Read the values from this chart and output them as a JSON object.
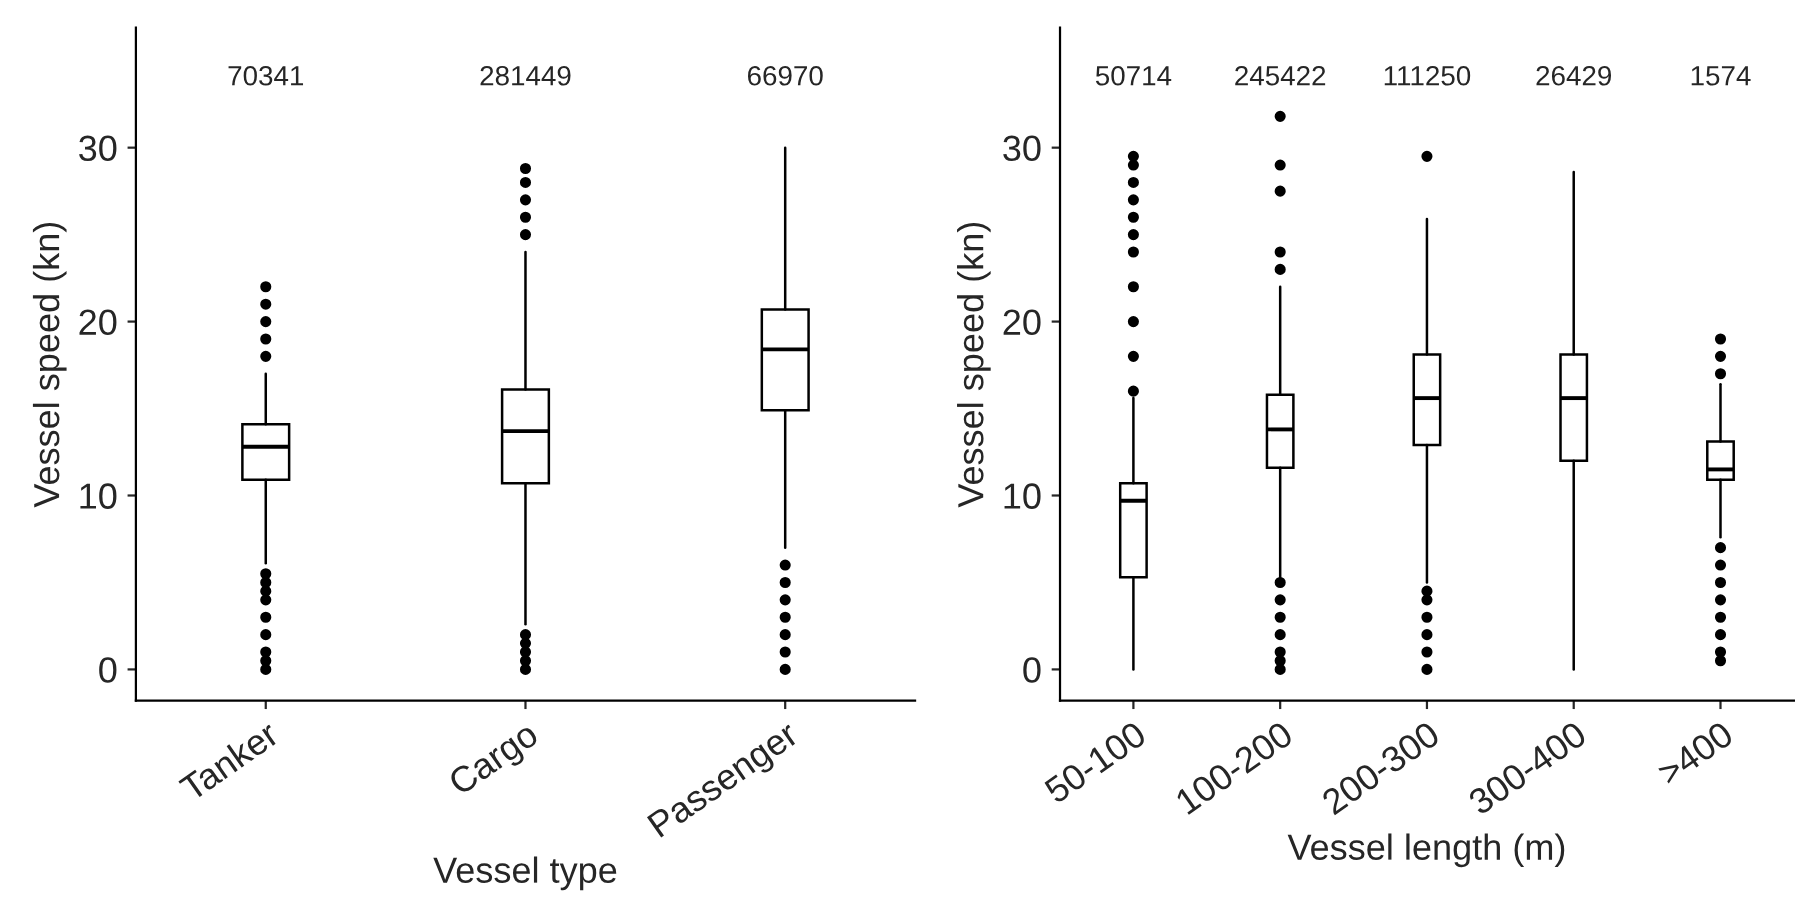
{
  "chart_data": [
    {
      "type": "box",
      "xlabel": "Vessel type",
      "ylabel": "Vessel speed (kn)",
      "categories": [
        "Tanker",
        "Cargo",
        "Passenger"
      ],
      "ylim": [
        -1.8,
        36.9
      ],
      "yticks": [
        0,
        10,
        20,
        30
      ],
      "grid": false,
      "boxes": [
        {
          "low": 6.1,
          "q1": 10.9,
          "median": 12.8,
          "q3": 14.1,
          "high": 17,
          "outliers": [
            0,
            0.5,
            1,
            2,
            3,
            4,
            4.5,
            5,
            5.5,
            18,
            19,
            20,
            21,
            22
          ]
        },
        {
          "low": 2.6,
          "q1": 10.7,
          "median": 13.7,
          "q3": 16.1,
          "high": 24,
          "outliers": [
            0,
            0.5,
            1,
            1.5,
            2,
            25,
            26,
            27,
            28,
            28.8
          ]
        },
        {
          "low": 7,
          "q1": 14.9,
          "median": 18.4,
          "q3": 20.7,
          "high": 30,
          "outliers": [
            0,
            1,
            2,
            3,
            4,
            5,
            6
          ]
        }
      ],
      "annotations": [
        "70341",
        "281449",
        "66970"
      ]
    },
    {
      "type": "box",
      "xlabel": "Vessel length (m)",
      "ylabel": "Vessel speed (kn)",
      "categories": [
        "50-100",
        "100-200",
        "200-300",
        "300-400",
        ">400"
      ],
      "ylim": [
        -1.8,
        36.9
      ],
      "yticks": [
        0,
        10,
        20,
        30
      ],
      "grid": false,
      "boxes": [
        {
          "low": 0,
          "q1": 5.3,
          "median": 9.7,
          "q3": 10.7,
          "high": 15.6,
          "outliers": [
            16,
            18,
            20,
            22,
            24,
            25,
            26,
            27,
            28,
            29,
            29.5
          ]
        },
        {
          "low": 5.3,
          "q1": 11.6,
          "median": 13.8,
          "q3": 15.8,
          "high": 22,
          "outliers": [
            0,
            0.5,
            1,
            2,
            3,
            4,
            5,
            23,
            24,
            27.5,
            29,
            31.8
          ]
        },
        {
          "low": 5,
          "q1": 12.9,
          "median": 15.6,
          "q3": 18.1,
          "high": 25.9,
          "outliers": [
            0,
            1,
            2,
            3,
            4,
            4.5,
            29.5
          ]
        },
        {
          "low": 0,
          "q1": 12,
          "median": 15.6,
          "q3": 18.1,
          "high": 28.6
        },
        {
          "low": 7.6,
          "q1": 10.9,
          "median": 11.5,
          "q3": 13.1,
          "high": 16.4,
          "outliers": [
            0.5,
            1,
            2,
            3,
            4,
            5,
            6,
            7,
            17,
            18,
            19
          ]
        }
      ],
      "annotations": [
        "50714",
        "245422",
        "111250",
        "26429",
        "1574"
      ]
    }
  ]
}
